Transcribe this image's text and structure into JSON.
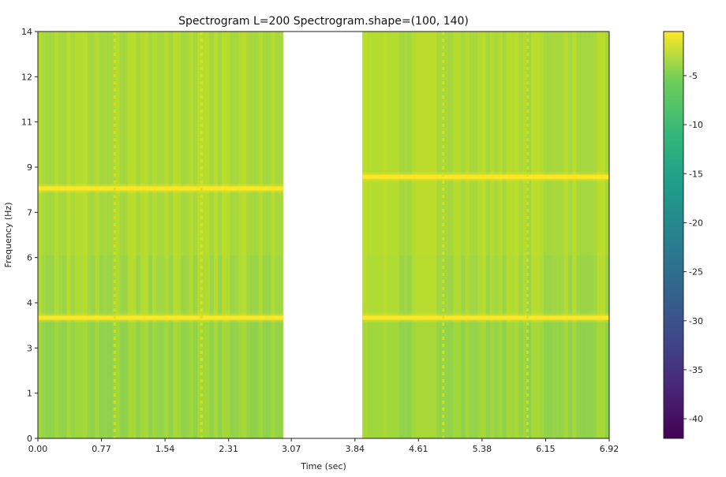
{
  "chart_data": {
    "type": "heatmap",
    "title": "Spectrogram L=200 Spectrogram.shape=(100, 140)",
    "xlabel": "Time (sec)",
    "ylabel": "Frequency (Hz)",
    "xlim": [
      0,
      6.92
    ],
    "ylim": [
      0,
      14
    ],
    "x_ticks": [
      "0.00",
      "0.77",
      "1.54",
      "2.31",
      "3.07",
      "3.84",
      "4.61",
      "5.38",
      "6.15",
      "6.92"
    ],
    "y_ticks": [
      "0",
      "1",
      "3",
      "4",
      "6",
      "7",
      "9",
      "11",
      "12",
      "14"
    ],
    "colormap": "viridis",
    "color_range": [
      -42,
      -0.5
    ],
    "colorbar_ticks": [
      "-5",
      "-10",
      "-15",
      "-20",
      "-25",
      "-30",
      "-35",
      "-40"
    ],
    "segments": [
      {
        "t_start": 0.0,
        "t_end": 2.97,
        "peak_frequencies_hz": [
          4.15,
          8.6
        ]
      },
      {
        "t_start": 3.93,
        "t_end": 6.92,
        "peak_frequencies_hz": [
          4.15,
          9.0
        ]
      }
    ],
    "gap": [
      2.97,
      3.93
    ],
    "grid": false
  }
}
